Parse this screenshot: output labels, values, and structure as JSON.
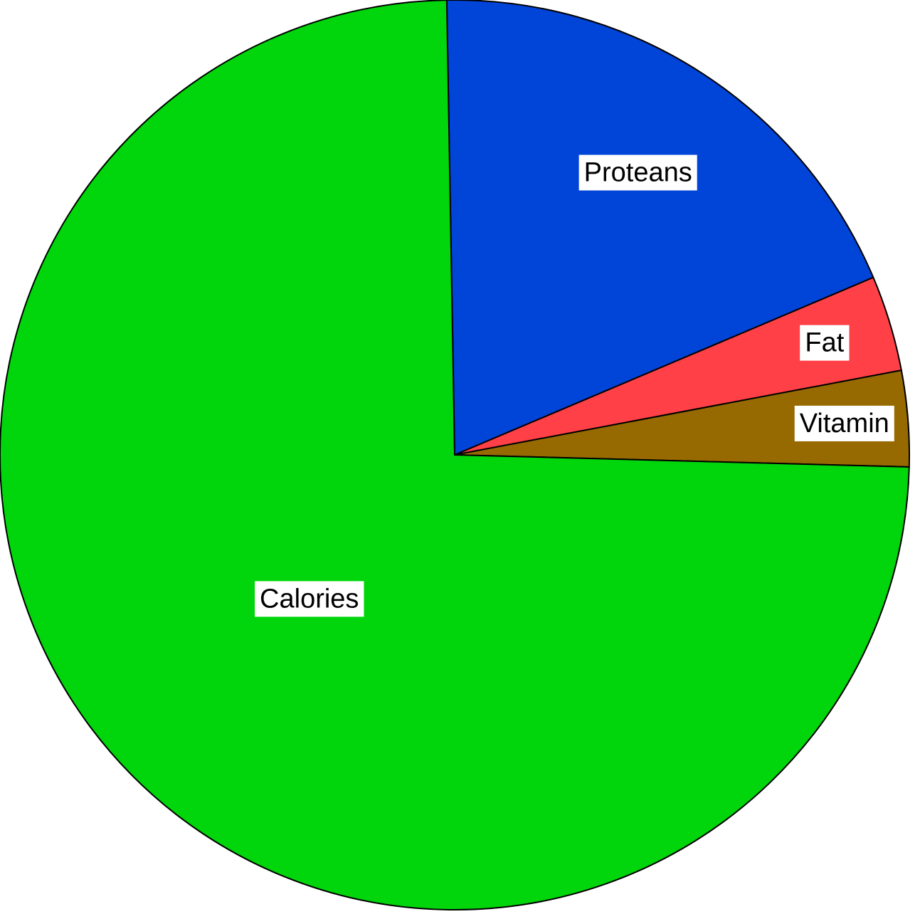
{
  "chart_data": {
    "type": "pie",
    "title": "",
    "slices": [
      {
        "label": "Proteans",
        "value": 18.9,
        "color": "#0044d8"
      },
      {
        "label": "Fat",
        "value": 3.4,
        "color": "#ff4046"
      },
      {
        "label": "Vitamin",
        "value": 3.4,
        "color": "#966a00"
      },
      {
        "label": "Calories",
        "value": 74.3,
        "color": "#00d60b"
      }
    ],
    "start_angle_deg": 91.0,
    "direction": "clockwise",
    "legend": "none",
    "slice_labels": "inside"
  }
}
